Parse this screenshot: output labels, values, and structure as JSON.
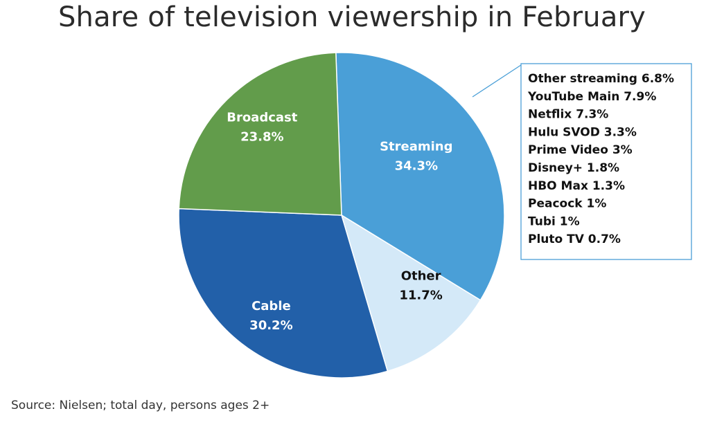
{
  "chart_data": {
    "type": "pie",
    "title": "Share of television viewership in February",
    "slices": [
      {
        "label": "Streaming",
        "value_text": "34.3%",
        "value": 34.3,
        "color": "#4a9fd7",
        "text_color": "#ffffff"
      },
      {
        "label": "Other",
        "value_text": "11.7%",
        "value": 11.7,
        "color": "#d4e9f8",
        "text_color": "#111111"
      },
      {
        "label": "Cable",
        "value_text": "30.2%",
        "value": 30.2,
        "color": "#2260a9",
        "text_color": "#ffffff"
      },
      {
        "label": "Broadcast",
        "value_text": "23.8%",
        "value": 23.8,
        "color": "#629c4b",
        "text_color": "#ffffff"
      }
    ],
    "streaming_breakdown": [
      {
        "label": "Other streaming",
        "value": 6.8,
        "text": "Other streaming 6.8%"
      },
      {
        "label": "YouTube Main",
        "value": 7.9,
        "text": "YouTube Main 7.9%"
      },
      {
        "label": "Netflix",
        "value": 7.3,
        "text": "Netflix 7.3%"
      },
      {
        "label": "Hulu SVOD",
        "value": 3.3,
        "text": "Hulu SVOD 3.3%"
      },
      {
        "label": "Prime Video",
        "value": 3,
        "text": "Prime Video 3%"
      },
      {
        "label": "Disney+",
        "value": 1.8,
        "text": "Disney+ 1.8%"
      },
      {
        "label": "HBO Max",
        "value": 1.3,
        "text": "HBO Max 1.3%"
      },
      {
        "label": "Peacock",
        "value": 1,
        "text": "Peacock 1%"
      },
      {
        "label": "Tubi",
        "value": 1,
        "text": "Tubi 1%"
      },
      {
        "label": "Pluto TV",
        "value": 0.7,
        "text": "Pluto TV 0.7%"
      }
    ],
    "callout_color": "#4a9fd7",
    "source": "Source: Nielsen; total day, persons ages 2+"
  }
}
